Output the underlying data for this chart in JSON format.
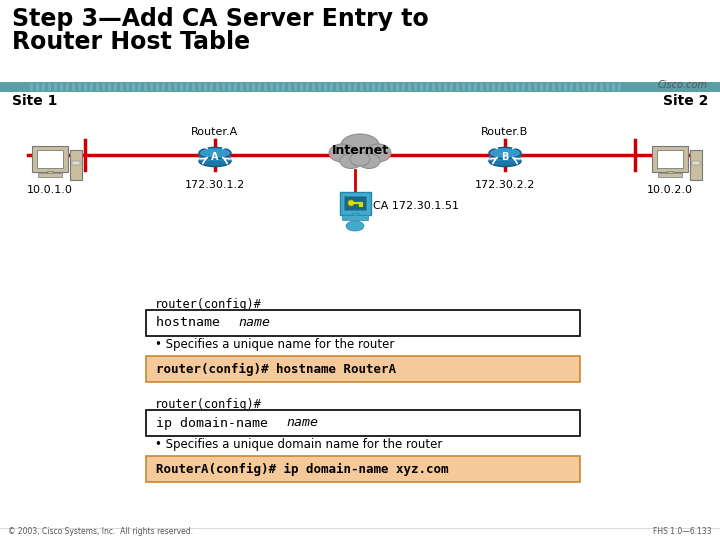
{
  "title_line1": "Step 3—Add CA Server Entry to",
  "title_line2": "Router Host Table",
  "title_fontsize": 17,
  "title_color": "#000000",
  "header_bar_color": "#5b9ea6",
  "site1_label": "Site 1",
  "site2_label": "Site 2",
  "cisco_label": "Cisco.com",
  "router_a_label": "Router.A",
  "router_b_label": "Router.B",
  "internet_label": "Internet",
  "ip_site1": "10.0.1.0",
  "ip_router_a": "172.30.1.2",
  "ip_router_b": "172.30.2.2",
  "ip_site2": "10.0.2.0",
  "ca_label": "CA 172.30.1.51",
  "cmd_prompt1": "router(config)#",
  "cmd_prompt2": "router(config)#",
  "box2_text": "router(config)# hostname RouterA",
  "box2_bg": "#f5c eighteen a",
  "box4_text": "RouterA(config)# ip domain-name xyz.com",
  "box4_bg": "#f5c99a",
  "bullet1": "• Specifies a unique name for the router",
  "bullet2": "• Specifies a unique domain name for the router",
  "footer_left": "© 2003, Cisco Systems, Inc.  All rights reserved.",
  "footer_right": "FHS 1.0—6.133",
  "line_color": "#cc0000",
  "router_color": "#3399cc",
  "cloud_color": "#aaaaaa",
  "ca_color": "#33bbdd",
  "box_orange_bg": "#f5c99a",
  "box_orange_border": "#cc8833",
  "bg_color": "#ffffff"
}
